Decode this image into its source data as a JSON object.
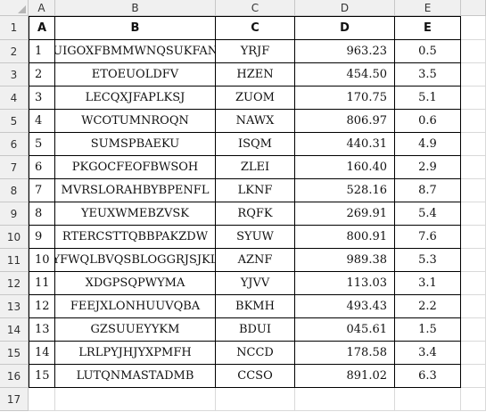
{
  "columns": [
    "A",
    "B",
    "C",
    "D",
    "E"
  ],
  "row_numbers": [
    "1",
    "2",
    "3",
    "4",
    "5",
    "6",
    "7",
    "8",
    "9",
    "10",
    "11",
    "12",
    "13",
    "14",
    "15",
    "16",
    "17"
  ],
  "headers": [
    "A",
    "B",
    "C",
    "D",
    "E"
  ],
  "rows": [
    [
      "1",
      "SUIGOXFBMMWNQSUKFANT",
      "YRJF",
      "963.23",
      "0.5"
    ],
    [
      "2",
      "ETOEUOLDFV",
      "HZEN",
      "454.50",
      "3.5"
    ],
    [
      "3",
      "LECQXJFAPLKSJ",
      "ZUOM",
      "170.75",
      "5.1"
    ],
    [
      "4",
      "WCOTUMNROQN",
      "NAWX",
      "806.97",
      "0.6"
    ],
    [
      "5",
      "SUMSPBAEKU",
      "ISQM",
      "440.31",
      "4.9"
    ],
    [
      "6",
      "PKGOCFEOFBWSOH",
      "ZLEI",
      "160.40",
      "2.9"
    ],
    [
      "7",
      "MVRSLORAHBYBPENFL",
      "LKNF",
      "528.16",
      "8.7"
    ],
    [
      "8",
      "YEUXWMEBZVSK",
      "RQFK",
      "269.91",
      "5.4"
    ],
    [
      "9",
      "RTERCSTTQBBPAKZDW",
      "SYUW",
      "800.91",
      "7.6"
    ],
    [
      "10",
      "YFWQLBVQSBLOGGRJSJKL",
      "AZNF",
      "989.38",
      "5.3"
    ],
    [
      "11",
      "XDGPSQPWYMA",
      "YJVV",
      "113.03",
      "3.1"
    ],
    [
      "12",
      "FEEJXLONHUUVQBA",
      "BKMH",
      "493.43",
      "2.2"
    ],
    [
      "13",
      "GZSUUEYYKM",
      "BDUI",
      "045.61",
      "1.5"
    ],
    [
      "14",
      "LRLPYJHJYXPMFH",
      "NCCD",
      "178.58",
      "3.4"
    ],
    [
      "15",
      "LUTQNMASTADMB",
      "CCSO",
      "891.02",
      "6.3"
    ]
  ],
  "colors": {
    "header_bg": "#f0f0f0",
    "grid": "#d9d9d9",
    "border": "#000000"
  }
}
